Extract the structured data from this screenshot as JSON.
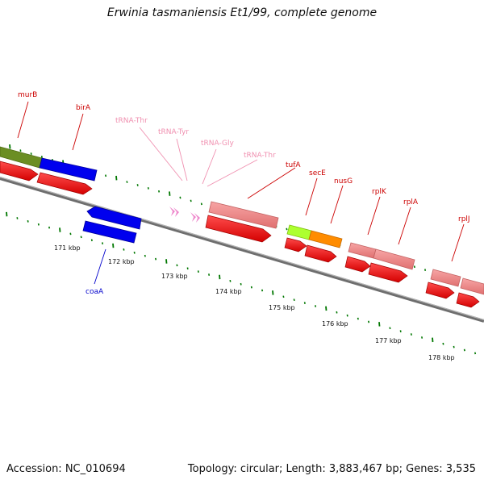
{
  "title": "Erwinia tasmaniensis Et1/99, complete genome",
  "footer": {
    "accession": "Accession: NC_010694",
    "summary": "Topology: circular; Length: 3,883,467 bp; Genes: 3,535"
  },
  "scale_labels": [
    "171 kbp",
    "172 kbp",
    "173 kbp",
    "174 kbp",
    "175 kbp",
    "176 kbp",
    "177 kbp",
    "178 kbp"
  ],
  "gene_labels": [
    "murB",
    "birA",
    "coaA",
    "tRNA-Thr",
    "tRNA-Tyr",
    "tRNA-Gly",
    "tRNA-Thr",
    "tufA",
    "secE",
    "nusG",
    "rplK",
    "rplA",
    "rplJ"
  ],
  "colors": {
    "protein_red": "#ff0000",
    "rna_pink": "#f08080",
    "trna_pink": "#ee88cc",
    "coa_blue": "#0000ee",
    "olive": "#6b8e23",
    "lime": "#adff2f",
    "orange": "#ff8c00",
    "backbone": "#808080",
    "tick_green": "#007700",
    "label_red": "#cc0000",
    "label_pink": "#f090b0",
    "label_blue": "#0000cc"
  }
}
